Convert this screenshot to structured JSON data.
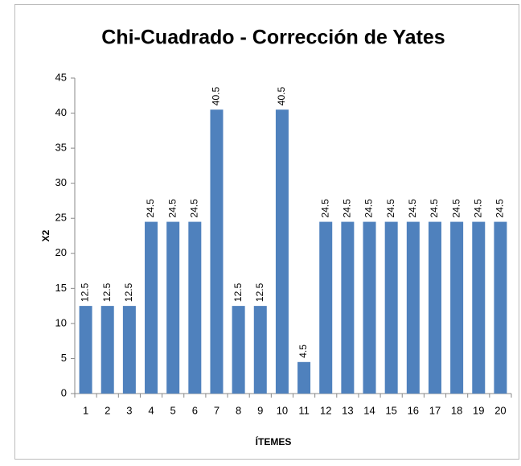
{
  "chart_data": {
    "type": "bar",
    "title": "Chi-Cuadrado - Corrección de Yates",
    "x_label": "ÍTEMES",
    "y_label": "X2",
    "categories": [
      "1",
      "2",
      "3",
      "4",
      "5",
      "6",
      "7",
      "8",
      "9",
      "10",
      "11",
      "12",
      "13",
      "14",
      "15",
      "16",
      "17",
      "18",
      "19",
      "20"
    ],
    "values": [
      12.5,
      12.5,
      12.5,
      24.5,
      24.5,
      24.5,
      40.5,
      12.5,
      12.5,
      40.5,
      4.5,
      24.5,
      24.5,
      24.5,
      24.5,
      24.5,
      24.5,
      24.5,
      24.5,
      24.5
    ],
    "color": "#4f81bd",
    "ylim": [
      0,
      45
    ],
    "yticks": [
      0,
      5,
      10,
      15,
      20,
      25,
      30,
      35,
      40,
      45
    ],
    "grid": false
  }
}
